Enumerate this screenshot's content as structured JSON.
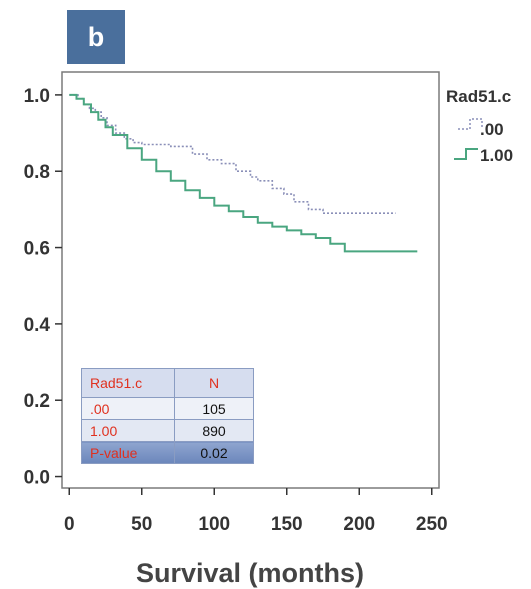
{
  "panel_label": "b",
  "chart_data": {
    "type": "line",
    "subtype": "kaplan-meier",
    "xlabel": "Survival (months)",
    "ylabel": "",
    "xlim": [
      -5,
      255
    ],
    "ylim": [
      -0.03,
      1.06
    ],
    "x_ticks": [
      0,
      50,
      100,
      150,
      200,
      250
    ],
    "y_ticks": [
      0.0,
      0.2,
      0.4,
      0.6,
      0.8,
      1.0
    ],
    "x_tick_labels": [
      "0",
      "50",
      "100",
      "150",
      "200",
      "250"
    ],
    "y_tick_labels": [
      "0.0",
      "0.2",
      "0.4",
      "0.6",
      "0.8",
      "1.0"
    ],
    "grid": false,
    "legend": {
      "title": "Rad51.c",
      "placement": "right"
    },
    "series": [
      {
        "name": ".00",
        "color": "#8a8fb8",
        "style": "dotted",
        "x": [
          0,
          6,
          10,
          14,
          18,
          22,
          26,
          32,
          38,
          44,
          50,
          70,
          85,
          95,
          105,
          115,
          125,
          130,
          140,
          148,
          155,
          165,
          175,
          180,
          225
        ],
        "y": [
          1.0,
          0.99,
          0.975,
          0.965,
          0.955,
          0.94,
          0.92,
          0.9,
          0.885,
          0.875,
          0.87,
          0.865,
          0.845,
          0.83,
          0.82,
          0.8,
          0.785,
          0.775,
          0.755,
          0.74,
          0.72,
          0.7,
          0.69,
          0.69,
          0.69
        ]
      },
      {
        "name": "1.00",
        "color": "#4aa680",
        "style": "solid",
        "x": [
          0,
          5,
          10,
          15,
          20,
          25,
          30,
          40,
          50,
          60,
          70,
          80,
          90,
          100,
          110,
          120,
          130,
          140,
          150,
          160,
          170,
          180,
          190,
          200,
          210,
          220,
          230,
          240
        ],
        "y": [
          1.0,
          0.99,
          0.975,
          0.955,
          0.935,
          0.915,
          0.895,
          0.86,
          0.83,
          0.8,
          0.775,
          0.75,
          0.73,
          0.71,
          0.695,
          0.68,
          0.665,
          0.655,
          0.645,
          0.635,
          0.625,
          0.61,
          0.59,
          0.59,
          0.59,
          0.59,
          0.59,
          0.59
        ]
      }
    ]
  },
  "inset_table": {
    "headers": [
      "Rad51.c",
      "N"
    ],
    "rows": [
      [
        ".00",
        "105"
      ],
      [
        "1.00",
        "890"
      ],
      [
        "P-value",
        "0.02"
      ]
    ]
  }
}
